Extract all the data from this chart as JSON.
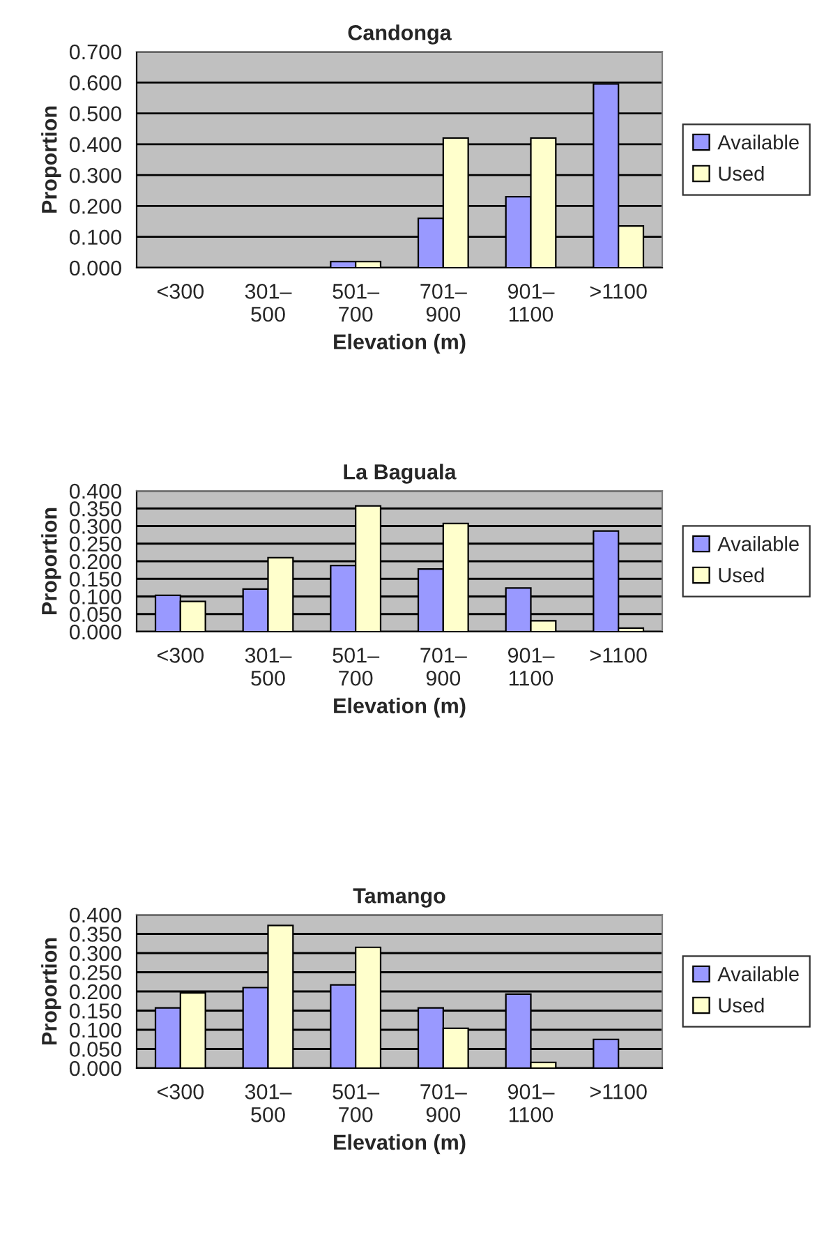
{
  "chart_data": [
    {
      "type": "bar",
      "title": "Candonga",
      "xlabel": "Elevation (m)",
      "ylabel": "Proportion",
      "categories": [
        "<300",
        "301–\n500",
        "501–\n700",
        "701–\n900",
        "901–\n1100",
        ">1100"
      ],
      "series": [
        {
          "name": "Available",
          "color": "#9999ff",
          "values": [
            0,
            0,
            0.02,
            0.16,
            0.23,
            0.595
          ]
        },
        {
          "name": "Used",
          "color": "#ffffcc",
          "values": [
            0,
            0,
            0.02,
            0.42,
            0.42,
            0.135
          ]
        }
      ],
      "ylim": [
        0,
        0.7
      ],
      "yticks": [
        {
          "value": 0,
          "label": "0.000"
        },
        {
          "value": 0.1,
          "label": "0.100"
        },
        {
          "value": 0.2,
          "label": "0.200"
        },
        {
          "value": 0.3,
          "label": "0.300"
        },
        {
          "value": 0.4,
          "label": "0.400"
        },
        {
          "value": 0.5,
          "label": "0.500"
        },
        {
          "value": 0.6,
          "label": "0.600"
        },
        {
          "value": 0.7,
          "label": "0.700"
        }
      ],
      "grid": "y",
      "legend": "right"
    },
    {
      "type": "bar",
      "title": "La Baguala",
      "xlabel": "Elevation (m)",
      "ylabel": "Proportion",
      "categories": [
        "<300",
        "301–\n500",
        "501–\n700",
        "701–\n900",
        "901–\n1100",
        ">1100"
      ],
      "series": [
        {
          "name": "Available",
          "color": "#9999ff",
          "values": [
            0.103,
            0.121,
            0.188,
            0.178,
            0.124,
            0.286
          ]
        },
        {
          "name": "Used",
          "color": "#ffffcc",
          "values": [
            0.086,
            0.21,
            0.357,
            0.307,
            0.031,
            0.01
          ]
        }
      ],
      "ylim": [
        0,
        0.4
      ],
      "yticks": [
        {
          "value": 0,
          "label": "0.000"
        },
        {
          "value": 0.05,
          "label": "0.050"
        },
        {
          "value": 0.1,
          "label": "0.100"
        },
        {
          "value": 0.15,
          "label": "0.150"
        },
        {
          "value": 0.2,
          "label": "0.200"
        },
        {
          "value": 0.25,
          "label": "0.250"
        },
        {
          "value": 0.3,
          "label": "0.300"
        },
        {
          "value": 0.35,
          "label": "0.350"
        },
        {
          "value": 0.4,
          "label": "0.400"
        }
      ],
      "grid": "y",
      "legend": "right"
    },
    {
      "type": "bar",
      "title": "Tamango",
      "xlabel": "Elevation (m)",
      "ylabel": "Proportion",
      "categories": [
        "<300",
        "301–\n500",
        "501–\n700",
        "701–\n900",
        "901–\n1100",
        ">1100"
      ],
      "series": [
        {
          "name": "Available",
          "color": "#9999ff",
          "values": [
            0.157,
            0.21,
            0.217,
            0.157,
            0.193,
            0.075
          ]
        },
        {
          "name": "Used",
          "color": "#ffffcc",
          "values": [
            0.196,
            0.372,
            0.315,
            0.104,
            0.015,
            0
          ]
        }
      ],
      "ylim": [
        0,
        0.4
      ],
      "yticks": [
        {
          "value": 0,
          "label": "0.000"
        },
        {
          "value": 0.05,
          "label": "0.050"
        },
        {
          "value": 0.1,
          "label": "0.100"
        },
        {
          "value": 0.15,
          "label": "0.150"
        },
        {
          "value": 0.2,
          "label": "0.200"
        },
        {
          "value": 0.25,
          "label": "0.250"
        },
        {
          "value": 0.3,
          "label": "0.300"
        },
        {
          "value": 0.35,
          "label": "0.350"
        },
        {
          "value": 0.4,
          "label": "0.400"
        }
      ],
      "grid": "y",
      "legend": "right"
    }
  ]
}
